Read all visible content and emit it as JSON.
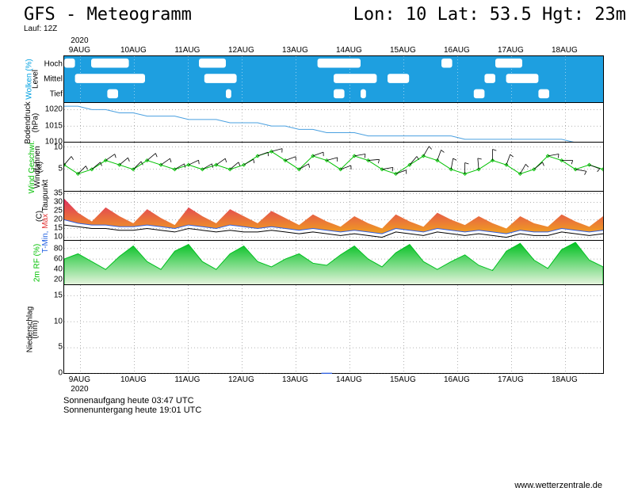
{
  "header": {
    "title": "GFS - Meteogramm",
    "coords": "Lon: 10 Lat: 53.5 Hgt: 23m",
    "run": "Lauf: 12Z"
  },
  "xaxis": {
    "year": "2020",
    "labels": [
      "9AUG",
      "10AUG",
      "11AUG",
      "12AUG",
      "13AUG",
      "14AUG",
      "15AUG",
      "16AUG",
      "17AUG",
      "18AUG"
    ],
    "positions": [
      0.03,
      0.13,
      0.23,
      0.33,
      0.43,
      0.53,
      0.63,
      0.73,
      0.83,
      0.93
    ]
  },
  "panels": {
    "clouds": {
      "height": 58,
      "label_outer": "Wolken (%)",
      "label_inner": "Level",
      "label_outer_color": "#00a0e0",
      "rows": [
        "Hoch",
        "Mittel",
        "Tief"
      ],
      "bg_color": "#1e9fe0",
      "cloud_color": "#ffffff",
      "bands": {
        "Hoch": [
          [
            0,
            0.02
          ],
          [
            0.05,
            0.12
          ],
          [
            0.25,
            0.3
          ],
          [
            0.47,
            0.55
          ],
          [
            0.7,
            0.72
          ],
          [
            0.8,
            0.85
          ]
        ],
        "Mittel": [
          [
            0.02,
            0.15
          ],
          [
            0.26,
            0.32
          ],
          [
            0.5,
            0.58
          ],
          [
            0.6,
            0.64
          ],
          [
            0.78,
            0.8
          ],
          [
            0.82,
            0.88
          ]
        ],
        "Tief": [
          [
            0.08,
            0.1
          ],
          [
            0.3,
            0.31
          ],
          [
            0.5,
            0.52
          ],
          [
            0.55,
            0.56
          ],
          [
            0.76,
            0.78
          ],
          [
            0.88,
            0.9
          ]
        ]
      }
    },
    "pressure": {
      "height": 50,
      "label": "Bodendruck",
      "unit": "(hPa)",
      "color": "#4aa0e0",
      "ymin": 1010,
      "ymax": 1022,
      "yticks": [
        1010,
        1015,
        1020
      ],
      "values": [
        1021,
        1021,
        1020,
        1020,
        1019,
        1019,
        1018,
        1018,
        1018,
        1017,
        1017,
        1017,
        1016,
        1016,
        1016,
        1015,
        1015,
        1014,
        1014,
        1013,
        1013,
        1013,
        1012,
        1012,
        1012,
        1012,
        1012,
        1012,
        1012,
        1011,
        1011,
        1011,
        1011,
        1011,
        1011,
        1011,
        1011,
        1010,
        1010,
        1010
      ]
    },
    "wind": {
      "height": 62,
      "label1": "Wind Geschwi.",
      "label1_color": "#00c000",
      "label2": "Windfahnen",
      "unit": "(kt)",
      "ymin": 0,
      "ymax": 11,
      "yticks": [
        5,
        10
      ],
      "speed_color": "#00c000",
      "barb_color": "#000000",
      "speed": [
        6,
        4,
        5,
        7,
        6,
        5,
        7,
        6,
        5,
        6,
        5,
        6,
        5,
        6,
        8,
        9,
        7,
        5,
        8,
        7,
        5,
        8,
        7,
        5,
        4,
        6,
        8,
        7,
        5,
        4,
        5,
        7,
        6,
        4,
        5,
        8,
        7,
        5,
        6,
        5
      ],
      "directions": [
        220,
        225,
        230,
        235,
        230,
        225,
        230,
        235,
        240,
        245,
        240,
        235,
        230,
        240,
        250,
        255,
        250,
        240,
        250,
        255,
        250,
        260,
        265,
        260,
        250,
        220,
        210,
        200,
        190,
        180,
        175,
        180,
        200,
        210,
        230,
        260,
        270,
        280,
        290,
        300
      ]
    },
    "temp": {
      "height": 62,
      "labels": [
        {
          "text": "T-Min,",
          "color": "#2060e0"
        },
        {
          "text": "Max",
          "color": "#e03030"
        },
        {
          "text": "Taupunkt",
          "color": "#000000"
        }
      ],
      "unit": "(C)",
      "ymin": 8,
      "ymax": 36,
      "yticks": [
        10,
        15,
        20,
        25,
        30,
        35
      ],
      "tmax_color_top": "#e03060",
      "tmax_color_bot": "#f0a020",
      "tmin_color": "#3060e0",
      "dew_color": "#000000",
      "tmax": [
        32,
        24,
        19,
        27,
        22,
        18,
        26,
        21,
        17,
        27,
        22,
        18,
        26,
        22,
        18,
        25,
        21,
        17,
        23,
        19,
        16,
        22,
        18,
        15,
        23,
        19,
        16,
        24,
        20,
        17,
        22,
        18,
        15,
        22,
        18,
        16,
        23,
        19,
        16,
        22
      ],
      "tmin": [
        20,
        18,
        17,
        17,
        16,
        16,
        17,
        16,
        15,
        17,
        16,
        15,
        17,
        16,
        15,
        16,
        15,
        14,
        15,
        14,
        13,
        14,
        13,
        12,
        15,
        14,
        13,
        15,
        14,
        13,
        14,
        13,
        12,
        14,
        13,
        13,
        15,
        14,
        13,
        14
      ],
      "dew": [
        17,
        16,
        15,
        15,
        14,
        14,
        15,
        14,
        13,
        15,
        14,
        13,
        14,
        13,
        13,
        14,
        13,
        12,
        13,
        12,
        11,
        12,
        11,
        10,
        13,
        12,
        11,
        13,
        12,
        11,
        12,
        11,
        10,
        12,
        11,
        11,
        13,
        12,
        11,
        12
      ]
    },
    "rh": {
      "height": 56,
      "label": "2m RF (%)",
      "label_color": "#00c000",
      "ymin": 10,
      "ymax": 95,
      "yticks": [
        20,
        40,
        60,
        80
      ],
      "fill_top": "#00c020",
      "fill_bot": "#e8f4e0",
      "values": [
        60,
        70,
        55,
        40,
        65,
        85,
        55,
        40,
        75,
        88,
        55,
        40,
        70,
        85,
        55,
        45,
        60,
        70,
        52,
        48,
        68,
        85,
        60,
        45,
        72,
        88,
        55,
        40,
        55,
        68,
        48,
        38,
        75,
        90,
        58,
        42,
        78,
        92,
        58,
        45
      ]
    },
    "precip": {
      "height": 112,
      "label": "Niederschlag",
      "unit": "(mm)",
      "ymin": 0,
      "ymax": 17,
      "yticks": [
        0,
        5,
        10,
        15
      ],
      "bar_color": "#3060e0",
      "values": [
        0,
        0,
        0,
        0,
        0,
        0,
        0,
        0,
        0,
        0,
        0,
        0,
        0,
        0,
        0,
        0,
        0,
        0,
        0,
        0.2,
        0,
        0,
        0,
        0,
        0,
        0,
        0,
        0,
        0,
        0,
        0,
        0,
        0,
        0,
        0,
        0,
        0,
        0,
        0,
        0
      ]
    }
  },
  "footer": {
    "sunrise": "Sonnenaufgang heute 03:47 UTC",
    "sunset": "Sonnenuntergang heute 19:01 UTC",
    "credit": "www.wetterzentrale.de"
  },
  "colors": {
    "text": "#000000",
    "border": "#000000"
  }
}
